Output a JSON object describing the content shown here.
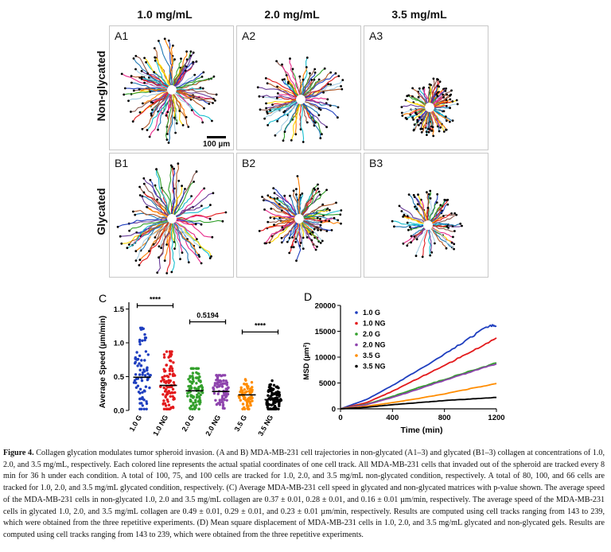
{
  "col_headers": [
    "1.0 mg/mL",
    "2.0 mg/mL",
    "3.5 mg/mL"
  ],
  "row_headers": [
    "Non-glycated",
    "Glycated"
  ],
  "panels": [
    {
      "label": "A1"
    },
    {
      "label": "A2"
    },
    {
      "label": "A3"
    },
    {
      "label": "B1"
    },
    {
      "label": "B2"
    },
    {
      "label": "B3"
    }
  ],
  "scalebar_label": "100 µm",
  "track_colors": [
    "#e31a1c",
    "#1f3fbf",
    "#33a02c",
    "#ff7f00",
    "#6a3d9a",
    "#1f78b4",
    "#b15928",
    "#e7298a",
    "#a6cee3",
    "#ffd700",
    "#17becf",
    "#8c564b"
  ],
  "chart_data": [
    {
      "panel": "C",
      "type": "scatter",
      "ylabel": "Average Speed (µm/min)",
      "ylim": [
        0,
        1.5
      ],
      "yticks": [
        "0.0",
        "0.5",
        "1.0",
        "1.5"
      ],
      "categories": [
        "1.0 G",
        "1.0 NG",
        "2.0 G",
        "2.0 NG",
        "3.5 G",
        "3.5 NG"
      ],
      "colors": [
        "#1f3fbf",
        "#e31a1c",
        "#33a02c",
        "#8e44ad",
        "#ff8c00",
        "#000000"
      ],
      "means": [
        0.49,
        0.37,
        0.29,
        0.28,
        0.23,
        0.16
      ],
      "maxima": [
        1.22,
        0.87,
        0.62,
        0.52,
        0.46,
        0.44
      ],
      "n": [
        80,
        100,
        100,
        75,
        66,
        100
      ],
      "significance": [
        {
          "from": "1.0 G",
          "to": "1.0 NG",
          "label": "****",
          "y": 1.55
        },
        {
          "from": "2.0 G",
          "to": "2.0 NG",
          "label": "0.5194",
          "y": 1.31
        },
        {
          "from": "3.5 G",
          "to": "3.5 NG",
          "label": "****",
          "y": 1.16
        }
      ]
    },
    {
      "panel": "D",
      "type": "line",
      "xlabel": "Time (min)",
      "ylabel": "MSD (µm²)",
      "xlim": [
        0,
        1200
      ],
      "ylim": [
        0,
        20000
      ],
      "xticks": [
        "0",
        "400",
        "800",
        "1200"
      ],
      "yticks": [
        "0",
        "5000",
        "10000",
        "15000",
        "20000"
      ],
      "series": [
        {
          "name": "1.0 G",
          "color": "#1f3fbf",
          "x": [
            0,
            200,
            400,
            600,
            800,
            1000,
            1150,
            1200
          ],
          "y": [
            0,
            1800,
            4500,
            7500,
            10500,
            13800,
            16200,
            16000
          ]
        },
        {
          "name": "1.0 NG",
          "color": "#e31a1c",
          "x": [
            0,
            200,
            400,
            600,
            800,
            1000,
            1200
          ],
          "y": [
            0,
            1200,
            3400,
            5900,
            8400,
            11000,
            13700
          ]
        },
        {
          "name": "2.0 G",
          "color": "#33a02c",
          "x": [
            0,
            200,
            400,
            600,
            800,
            1000,
            1200
          ],
          "y": [
            0,
            900,
            2400,
            4100,
            5700,
            7300,
            8900
          ]
        },
        {
          "name": "2.0 NG",
          "color": "#8e44ad",
          "x": [
            0,
            200,
            400,
            600,
            800,
            1000,
            1200
          ],
          "y": [
            0,
            800,
            2200,
            3800,
            5500,
            7100,
            8700
          ]
        },
        {
          "name": "3.5 G",
          "color": "#ff8c00",
          "x": [
            0,
            200,
            400,
            600,
            800,
            1000,
            1200
          ],
          "y": [
            0,
            500,
            1200,
            2000,
            2900,
            3900,
            4900
          ]
        },
        {
          "name": "3.5 NG",
          "color": "#000000",
          "x": [
            0,
            200,
            400,
            600,
            800,
            1000,
            1200
          ],
          "y": [
            0,
            300,
            800,
            1200,
            1600,
            1900,
            2200
          ]
        }
      ]
    }
  ],
  "caption": {
    "title": "Figure 4.",
    "text": " Collagen glycation modulates tumor spheroid invasion. (A and B) MDA-MB-231 cell trajectories in non-glycated (A1–3) and glycated (B1–3) collagen at concentrations of 1.0, 2.0, and 3.5 mg/mL, respectively. Each colored line represents the actual spatial coordinates of one cell track. All MDA-MB-231 cells that invaded out of the spheroid are tracked every 8 min for 36 h under each condition. A total of 100, 75, and 100 cells are tracked for 1.0, 2.0, and 3.5 mg/mL non-glycated condition, respectively. A total of 80, 100, and 66 cells are tracked for 1.0, 2.0, and 3.5 mg/mL glycated condition, respectively. (C) Average MDA-MB-231 cell speed in glycated and non-glycated matrices with p-value shown. The average speed of the MDA-MB-231 cells in non-glycated 1.0, 2.0 and 3.5 mg/mL collagen are 0.37 ± 0.01, 0.28 ± 0.01, and 0.16 ± 0.01 µm/min, respectively. The average speed of the MDA-MB-231 cells in glycated 1.0, 2.0, and 3.5 mg/mL collagen are 0.49 ± 0.01, 0.29 ± 0.01, and 0.23 ± 0.01 µm/min, respectively. Results are computed using cell tracks ranging from 143 to 239, which were obtained from the three repetitive experiments. (D) Mean square displacement of MDA-MB-231 cells in 1.0, 2.0, and 3.5 mg/mL glycated and non-glycated gels. Results are computed using cell tracks ranging from 143 to 239, which were obtained from the three repetitive experiments."
  }
}
